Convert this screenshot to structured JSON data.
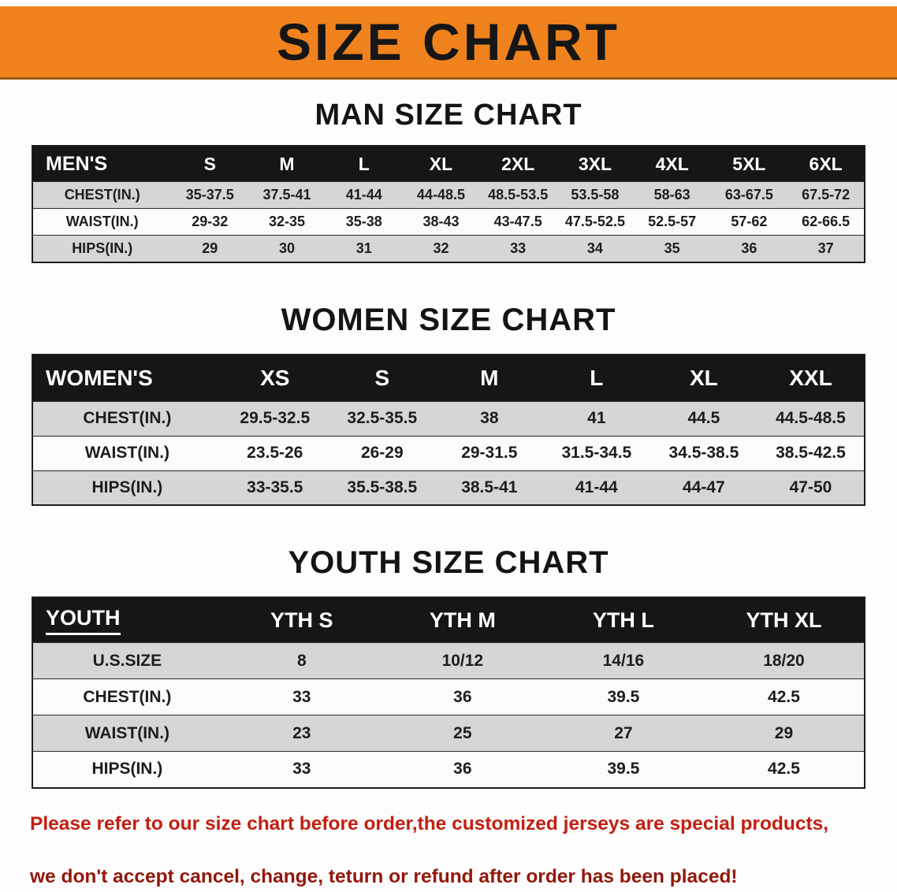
{
  "banner": {
    "title": "SIZE CHART",
    "bg_color": "#f0821e"
  },
  "sections": [
    {
      "id": "men",
      "heading": "MAN SIZE CHART",
      "table": {
        "header": [
          "MEN'S",
          "S",
          "M",
          "L",
          "XL",
          "2XL",
          "3XL",
          "4XL",
          "5XL",
          "6XL"
        ],
        "rows": [
          [
            "CHEST(IN.)",
            "35-37.5",
            "37.5-41",
            "41-44",
            "44-48.5",
            "48.5-53.5",
            "53.5-58",
            "58-63",
            "63-67.5",
            "67.5-72"
          ],
          [
            "WAIST(IN.)",
            "29-32",
            "32-35",
            "35-38",
            "38-43",
            "43-47.5",
            "47.5-52.5",
            "52.5-57",
            "57-62",
            "62-66.5"
          ],
          [
            "HIPS(IN.)",
            "29",
            "30",
            "31",
            "32",
            "33",
            "34",
            "35",
            "36",
            "37"
          ]
        ]
      }
    },
    {
      "id": "women",
      "heading": "WOMEN SIZE CHART",
      "table": {
        "header": [
          "WOMEN'S",
          "XS",
          "S",
          "M",
          "L",
          "XL",
          "XXL"
        ],
        "rows": [
          [
            "CHEST(IN.)",
            "29.5-32.5",
            "32.5-35.5",
            "38",
            "41",
            "44.5",
            "44.5-48.5"
          ],
          [
            "WAIST(IN.)",
            "23.5-26",
            "26-29",
            "29-31.5",
            "31.5-34.5",
            "34.5-38.5",
            "38.5-42.5"
          ],
          [
            "HIPS(IN.)",
            "33-35.5",
            "35.5-38.5",
            "38.5-41",
            "41-44",
            "44-47",
            "47-50"
          ]
        ]
      }
    },
    {
      "id": "youth",
      "heading": "YOUTH SIZE CHART",
      "table": {
        "header": [
          "YOUTH",
          "YTH S",
          "YTH M",
          "YTH L",
          "YTH XL"
        ],
        "rows": [
          [
            "U.S.SIZE",
            "8",
            "10/12",
            "14/16",
            "18/20"
          ],
          [
            "CHEST(IN.)",
            "33",
            "36",
            "39.5",
            "42.5"
          ],
          [
            "WAIST(IN.)",
            "23",
            "25",
            "27",
            "29"
          ],
          [
            "HIPS(IN.)",
            "33",
            "36",
            "39.5",
            "42.5"
          ]
        ]
      }
    }
  ],
  "disclaimer": {
    "lines": [
      "Please refer to our size chart before order,the customized jerseys are special products,",
      "we don't accept cancel, change, teturn or refund after order has been placed!"
    ],
    "colors": [
      "#c31e10",
      "#93170b"
    ]
  }
}
